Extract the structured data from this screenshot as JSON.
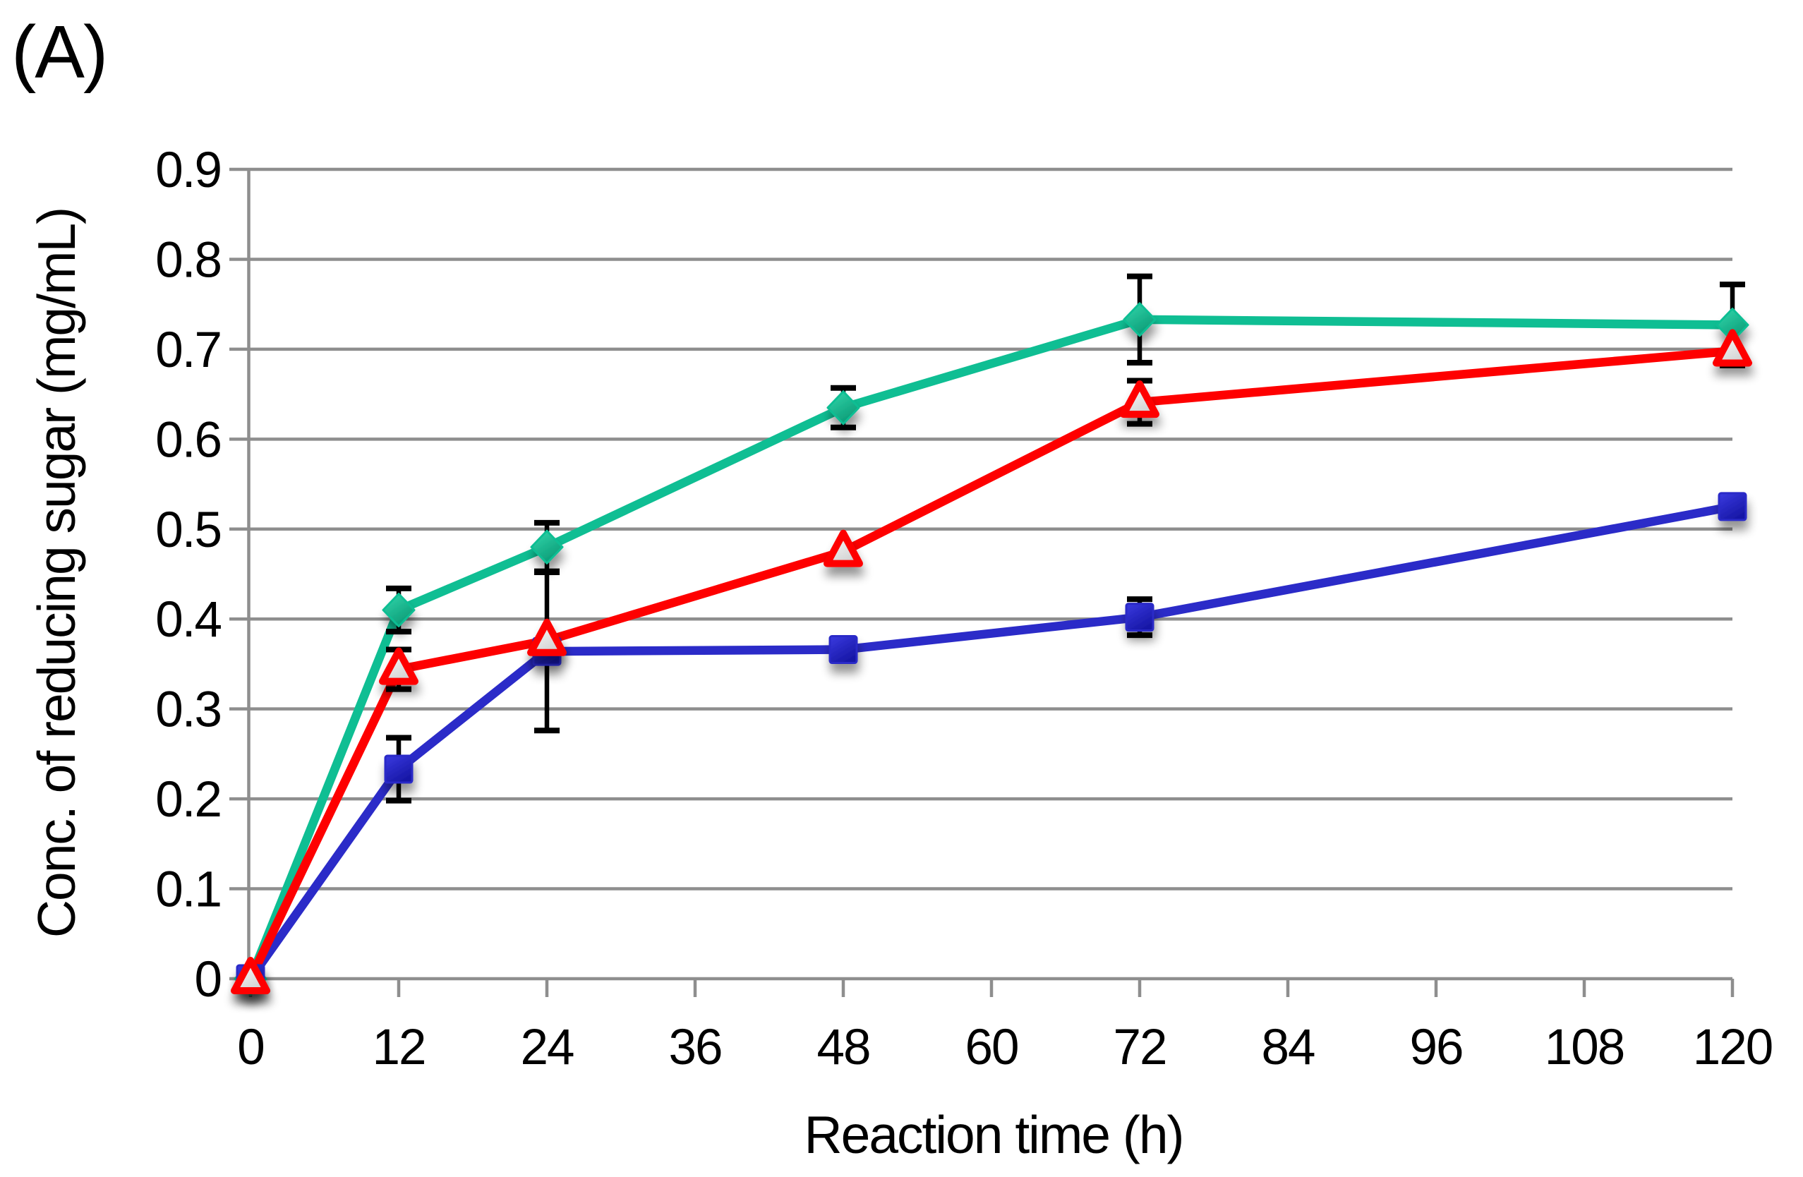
{
  "panel_label": "(A)",
  "axes": {
    "x_title": "Reaction time (h)",
    "y_title": "Conc. of reducing sugar (mg/mL)"
  },
  "colors": {
    "grid": "#8E8E8E",
    "axis": "#8E8E8E",
    "error_bar": "#000000",
    "green_series": "#0FBE93",
    "blue_series": "#2B2BC8",
    "red_series": "#FE0000",
    "background": "#FFFFFF"
  },
  "chart_data": {
    "type": "line",
    "title": "",
    "xlabel": "Reaction time (h)",
    "ylabel": "Conc. of reducing sugar (mg/mL)",
    "xlim": [
      0,
      120
    ],
    "ylim": [
      0,
      0.9
    ],
    "x_ticks": [
      0,
      12,
      24,
      36,
      48,
      60,
      72,
      84,
      96,
      108,
      120
    ],
    "y_ticks": [
      0,
      0.1,
      0.2,
      0.3,
      0.4,
      0.5,
      0.6,
      0.7,
      0.8,
      0.9
    ],
    "grid": true,
    "legend": "none",
    "x": [
      0,
      12,
      24,
      48,
      72,
      120
    ],
    "series": [
      {
        "id": "green-diamond",
        "marker": "diamond",
        "color": "#0FBE93",
        "values": [
          0,
          0.41,
          0.48,
          0.635,
          0.733,
          0.727
        ],
        "errors": [
          0,
          0.024,
          0.027,
          0.022,
          0.048,
          0.045
        ]
      },
      {
        "id": "blue-square",
        "marker": "square",
        "color": "#2B2BC8",
        "values": [
          0,
          0.233,
          0.364,
          0.366,
          0.402,
          0.525
        ],
        "errors": [
          0,
          0.035,
          0.088,
          0,
          0.02,
          0
        ]
      },
      {
        "id": "red-triangle-open",
        "marker": "triangle",
        "color": "#FE0000",
        "values": [
          0,
          0.344,
          0.376,
          0.475,
          0.641,
          0.698
        ],
        "errors": [
          0,
          0.022,
          0,
          0,
          0.024,
          0
        ]
      }
    ]
  }
}
